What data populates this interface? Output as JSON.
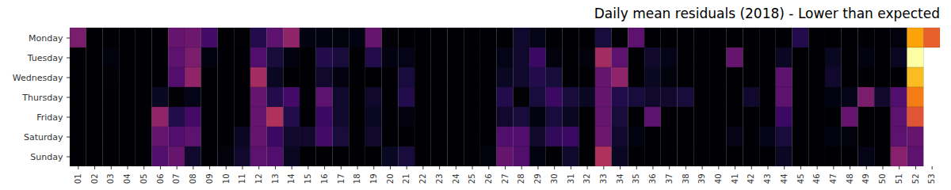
{
  "chart_data": {
    "type": "heatmap",
    "title": "Daily mean residuals (2018) - Lower than expected",
    "x": [
      "01",
      "02",
      "03",
      "04",
      "05",
      "06",
      "07",
      "08",
      "09",
      "10",
      "11",
      "12",
      "13",
      "14",
      "15",
      "16",
      "17",
      "18",
      "19",
      "20",
      "21",
      "22",
      "23",
      "24",
      "25",
      "26",
      "27",
      "28",
      "29",
      "30",
      "31",
      "32",
      "33",
      "34",
      "35",
      "36",
      "37",
      "38",
      "39",
      "40",
      "41",
      "42",
      "43",
      "44",
      "45",
      "46",
      "47",
      "48",
      "49",
      "50",
      "51",
      "52",
      "53"
    ],
    "y": [
      "Monday",
      "Tuesday",
      "Wednesday",
      "Thursday",
      "Friday",
      "Saturday",
      "Sunday"
    ],
    "color": "inferno",
    "cells": [
      [
        0.35,
        0.02,
        0.02,
        0.02,
        0.02,
        0.02,
        0.3,
        0.32,
        0.22,
        0.02,
        0.03,
        0.15,
        0.28,
        0.4,
        0.05,
        0.05,
        0.04,
        0.05,
        0.3,
        0.03,
        0.02,
        0.02,
        0.02,
        0.02,
        0.02,
        0.02,
        0.02,
        0.1,
        0.06,
        0.02,
        0.02,
        0.02,
        0.12,
        0.03,
        0.28,
        0.02,
        0.02,
        0.02,
        0.02,
        0.02,
        0.02,
        0.02,
        0.02,
        0.02,
        0.15,
        0.02,
        0.02,
        0.02,
        0.02,
        0.02,
        0.04,
        0.8,
        0.65
      ],
      [
        0.02,
        0.02,
        0.04,
        0.02,
        0.02,
        0.02,
        0.28,
        0.35,
        0.05,
        0.02,
        0.02,
        0.25,
        0.12,
        0.05,
        0.02,
        0.15,
        0.12,
        0.02,
        0.15,
        0.05,
        0.06,
        0.02,
        0.02,
        0.02,
        0.02,
        0.02,
        0.06,
        0.1,
        0.2,
        0.04,
        0.02,
        0.04,
        0.45,
        0.28,
        0.02,
        0.1,
        0.06,
        0.02,
        0.02,
        0.02,
        0.3,
        0.02,
        0.02,
        0.08,
        0.02,
        0.02,
        0.08,
        0.02,
        0.05,
        0.02,
        0.08,
        1.0,
        null
      ],
      [
        0.02,
        0.02,
        0.03,
        0.02,
        0.02,
        0.02,
        0.25,
        0.4,
        0.02,
        0.02,
        0.02,
        0.45,
        0.08,
        0.02,
        0.02,
        0.1,
        0.05,
        0.02,
        0.02,
        0.02,
        0.12,
        0.02,
        0.02,
        0.02,
        0.02,
        0.02,
        0.08,
        0.1,
        0.15,
        0.12,
        0.02,
        0.02,
        0.3,
        0.4,
        0.02,
        0.08,
        0.04,
        0.02,
        0.02,
        0.02,
        0.02,
        0.02,
        0.02,
        0.28,
        0.02,
        0.02,
        0.1,
        0.02,
        0.02,
        0.02,
        0.02,
        0.85,
        null
      ],
      [
        0.02,
        0.02,
        0.02,
        0.02,
        0.02,
        0.08,
        0.03,
        0.06,
        0.02,
        0.02,
        0.02,
        0.3,
        0.15,
        0.22,
        0.02,
        0.28,
        0.1,
        0.02,
        0.1,
        0.02,
        0.15,
        0.02,
        0.02,
        0.02,
        0.02,
        0.02,
        0.15,
        0.03,
        0.12,
        0.2,
        0.12,
        0.08,
        0.3,
        0.15,
        0.12,
        0.1,
        0.1,
        0.12,
        0.02,
        0.02,
        0.02,
        0.1,
        0.02,
        0.28,
        0.02,
        0.02,
        0.05,
        0.06,
        0.35,
        0.1,
        0.25,
        0.72,
        null
      ],
      [
        0.02,
        0.02,
        0.02,
        0.02,
        0.02,
        0.4,
        0.15,
        0.22,
        0.02,
        0.02,
        0.02,
        0.3,
        0.48,
        0.15,
        0.02,
        0.2,
        0.1,
        0.02,
        0.08,
        0.02,
        0.05,
        0.02,
        0.02,
        0.02,
        0.02,
        0.02,
        0.1,
        0.12,
        0.05,
        0.12,
        0.08,
        0.02,
        0.3,
        0.12,
        0.02,
        0.28,
        0.02,
        0.02,
        0.02,
        0.02,
        0.02,
        0.02,
        0.02,
        0.2,
        0.02,
        0.02,
        0.02,
        0.3,
        0.02,
        0.02,
        0.28,
        0.62,
        null
      ],
      [
        0.02,
        0.02,
        0.02,
        0.02,
        0.02,
        0.3,
        0.25,
        0.28,
        0.02,
        0.02,
        0.08,
        0.3,
        0.2,
        0.1,
        0.1,
        0.22,
        0.12,
        0.02,
        0.1,
        0.02,
        0.02,
        0.02,
        0.02,
        0.02,
        0.02,
        0.02,
        0.25,
        0.25,
        0.1,
        0.18,
        0.2,
        0.02,
        0.32,
        0.1,
        0.05,
        0.02,
        0.02,
        0.02,
        0.02,
        0.02,
        0.06,
        0.02,
        0.06,
        0.12,
        0.02,
        0.02,
        0.05,
        0.04,
        0.02,
        0.02,
        0.28,
        0.3,
        null
      ],
      [
        0.02,
        0.02,
        0.02,
        0.02,
        0.02,
        0.25,
        0.3,
        0.1,
        0.02,
        0.04,
        0.1,
        0.28,
        0.25,
        0.08,
        0.02,
        0.02,
        0.02,
        0.02,
        0.02,
        0.08,
        0.12,
        0.02,
        0.02,
        0.02,
        0.02,
        0.04,
        0.3,
        0.25,
        0.05,
        0.02,
        0.1,
        0.02,
        0.48,
        0.08,
        0.02,
        0.02,
        0.02,
        0.02,
        0.02,
        0.02,
        0.02,
        0.02,
        0.02,
        0.08,
        0.02,
        0.02,
        0.02,
        0.02,
        0.06,
        0.02,
        0.38,
        0.28,
        null
      ]
    ]
  }
}
